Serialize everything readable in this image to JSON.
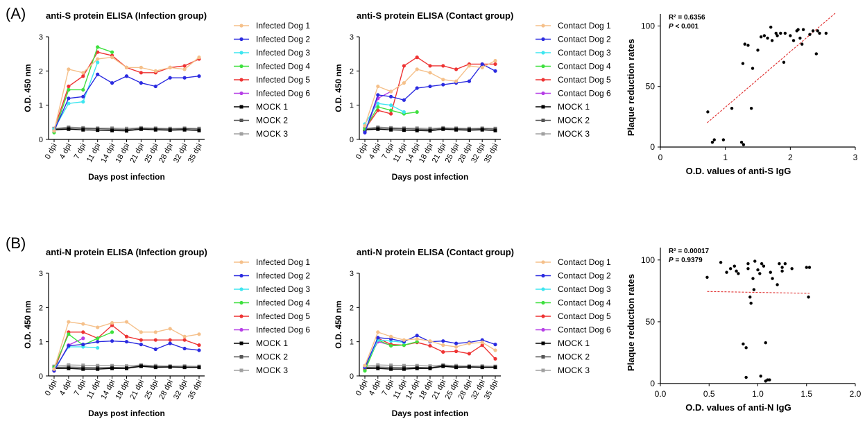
{
  "panel_labels": {
    "a": "(A)",
    "b": "(B)"
  },
  "colors": {
    "Infected Dog 1": "#f5c08a",
    "Infected Dog 2": "#2b2be0",
    "Infected Dog 3": "#3ee6f0",
    "Infected Dog 4": "#3ee03e",
    "Infected Dog 5": "#ee3333",
    "Infected Dog 6": "#b63ee6",
    "Contact Dog 1": "#f5c08a",
    "Contact Dog 2": "#2b2be0",
    "Contact Dog 3": "#3ee6f0",
    "Contact Dog 4": "#3ee03e",
    "Contact Dog 5": "#ee3333",
    "Contact Dog 6": "#b63ee6",
    "MOCK 1": "#000000",
    "MOCK 2": "#555555",
    "MOCK 3": "#a0a0a0",
    "fit_line": "#e03030",
    "scatter_points": "#000000"
  },
  "chart_data": [
    {
      "type": "line",
      "title": "anti-S protein ELISA (Infection group)",
      "xlabel": "Days post infection",
      "ylabel": "O.D. 450 nm",
      "ylim": [
        0,
        3
      ],
      "yticks": [
        0,
        1,
        2,
        3
      ],
      "categories": [
        "0 dpi",
        "4 dpi",
        "7 dpi",
        "11 dpi",
        "14 dpi",
        "18 dpi",
        "21 dpi",
        "25 dpi",
        "28 dpi",
        "32 dpi",
        "35 dpi"
      ],
      "legend": "right",
      "series": [
        {
          "name": "Infected Dog 1",
          "values": [
            0.25,
            2.05,
            1.95,
            2.35,
            2.4,
            2.1,
            2.1,
            2.0,
            2.1,
            2.05,
            2.4
          ]
        },
        {
          "name": "Infected Dog 2",
          "values": [
            0.25,
            1.2,
            1.25,
            1.9,
            1.65,
            1.85,
            1.65,
            1.55,
            1.8,
            1.8,
            1.85
          ]
        },
        {
          "name": "Infected Dog 3",
          "values": [
            0.3,
            1.05,
            1.1,
            2.25,
            null,
            null,
            null,
            null,
            null,
            null,
            null
          ]
        },
        {
          "name": "Infected Dog 4",
          "values": [
            0.2,
            1.45,
            1.45,
            2.7,
            2.55,
            null,
            null,
            null,
            null,
            null,
            null
          ]
        },
        {
          "name": "Infected Dog 5",
          "values": [
            0.3,
            1.55,
            1.85,
            2.55,
            2.45,
            2.1,
            1.95,
            1.95,
            2.1,
            2.15,
            2.35
          ]
        },
        {
          "name": "Infected Dog 6",
          "values": [
            0.3,
            null,
            null,
            null,
            null,
            null,
            null,
            null,
            null,
            null,
            null
          ]
        },
        {
          "name": "MOCK 1",
          "values": [
            0.28,
            0.3,
            0.28,
            0.27,
            0.26,
            0.25,
            0.3,
            0.28,
            0.27,
            0.28,
            0.26
          ]
        },
        {
          "name": "MOCK 2",
          "values": [
            0.3,
            0.33,
            0.32,
            0.31,
            0.3,
            0.29,
            0.32,
            0.31,
            0.3,
            0.31,
            0.3
          ]
        },
        {
          "name": "MOCK 3",
          "values": [
            0.32,
            0.36,
            0.34,
            0.33,
            0.33,
            0.32,
            0.34,
            0.33,
            0.32,
            0.33,
            0.32
          ]
        }
      ]
    },
    {
      "type": "line",
      "title": "anti-S protein ELISA (Contact group)",
      "xlabel": "Days post infection",
      "ylabel": "O.D. 450 nm",
      "ylim": [
        0,
        3
      ],
      "yticks": [
        0,
        1,
        2,
        3
      ],
      "categories": [
        "0 dpi",
        "4 dpi",
        "7 dpi",
        "11 dpi",
        "14 dpi",
        "18 dpi",
        "21 dpi",
        "25 dpi",
        "28 dpi",
        "32 dpi",
        "35 dpi"
      ],
      "legend": "right",
      "series": [
        {
          "name": "Contact Dog 1",
          "values": [
            0.4,
            1.55,
            1.4,
            1.65,
            2.05,
            1.95,
            1.75,
            1.7,
            2.15,
            2.1,
            2.3
          ]
        },
        {
          "name": "Contact Dog 2",
          "values": [
            0.2,
            1.3,
            1.25,
            1.15,
            1.5,
            1.55,
            1.6,
            1.65,
            1.7,
            2.2,
            2.0
          ]
        },
        {
          "name": "Contact Dog 3",
          "values": [
            0.45,
            1.05,
            1.0,
            0.8,
            null,
            null,
            null,
            null,
            null,
            null,
            null
          ]
        },
        {
          "name": "Contact Dog 4",
          "values": [
            0.3,
            0.95,
            0.85,
            0.75,
            0.8,
            null,
            null,
            null,
            null,
            null,
            null
          ]
        },
        {
          "name": "Contact Dog 5",
          "values": [
            0.3,
            0.85,
            0.75,
            2.15,
            2.4,
            2.15,
            2.15,
            2.05,
            2.2,
            2.2,
            2.2
          ]
        },
        {
          "name": "Contact Dog 6",
          "values": [
            0.2,
            1.2,
            1.4,
            null,
            null,
            null,
            null,
            null,
            null,
            null,
            null
          ]
        },
        {
          "name": "MOCK 1",
          "values": [
            0.28,
            0.3,
            0.28,
            0.27,
            0.26,
            0.25,
            0.3,
            0.28,
            0.27,
            0.28,
            0.26
          ]
        },
        {
          "name": "MOCK 2",
          "values": [
            0.3,
            0.33,
            0.32,
            0.31,
            0.3,
            0.29,
            0.32,
            0.31,
            0.3,
            0.31,
            0.3
          ]
        },
        {
          "name": "MOCK 3",
          "values": [
            0.32,
            0.36,
            0.34,
            0.33,
            0.33,
            0.32,
            0.34,
            0.33,
            0.32,
            0.33,
            0.32
          ]
        }
      ]
    },
    {
      "type": "scatter",
      "title": "",
      "xlabel": "O.D. values of anti-S IgG",
      "ylabel": "Plaque reduction rates",
      "xlim": [
        0,
        3
      ],
      "ylim": [
        0,
        110
      ],
      "xticks": [
        0,
        1,
        2,
        3
      ],
      "yticks": [
        0,
        50,
        100
      ],
      "annotation": {
        "r2": "R² = 0.6356",
        "p_label": "P",
        "p_value": " < 0.001"
      },
      "fit_line": {
        "x": [
          0.72,
          2.7
        ],
        "y": [
          20,
          111
        ]
      },
      "points": [
        [
          0.73,
          29
        ],
        [
          0.8,
          4
        ],
        [
          0.83,
          6
        ],
        [
          0.97,
          6
        ],
        [
          1.1,
          32
        ],
        [
          1.25,
          4
        ],
        [
          1.27,
          69
        ],
        [
          1.28,
          2
        ],
        [
          1.3,
          85
        ],
        [
          1.35,
          84
        ],
        [
          1.4,
          32
        ],
        [
          1.42,
          65
        ],
        [
          1.5,
          80
        ],
        [
          1.55,
          91
        ],
        [
          1.6,
          92
        ],
        [
          1.65,
          90
        ],
        [
          1.7,
          99
        ],
        [
          1.72,
          88
        ],
        [
          1.78,
          94
        ],
        [
          1.8,
          92
        ],
        [
          1.85,
          94
        ],
        [
          1.9,
          70
        ],
        [
          1.92,
          94
        ],
        [
          2.0,
          92
        ],
        [
          2.05,
          88
        ],
        [
          2.1,
          96
        ],
        [
          2.12,
          97
        ],
        [
          2.15,
          90
        ],
        [
          2.18,
          85
        ],
        [
          2.2,
          97
        ],
        [
          2.3,
          93
        ],
        [
          2.35,
          96
        ],
        [
          2.4,
          77
        ],
        [
          2.42,
          96
        ],
        [
          2.45,
          94
        ],
        [
          2.55,
          94
        ]
      ]
    },
    {
      "type": "line",
      "title": "anti-N protein ELISA (Infection group)",
      "xlabel": "Days post infection",
      "ylabel": "O.D. 450 nm",
      "ylim": [
        0,
        3
      ],
      "yticks": [
        0,
        1,
        2,
        3
      ],
      "categories": [
        "0 dpi",
        "4 dpi",
        "7 dpi",
        "11 dpi",
        "14 dpi",
        "18 dpi",
        "21 dpi",
        "25 dpi",
        "28 dpi",
        "32 dpi",
        "35 dpi"
      ],
      "legend": "right",
      "series": [
        {
          "name": "Infected Dog 1",
          "values": [
            0.2,
            1.58,
            1.52,
            1.42,
            1.55,
            1.58,
            1.28,
            1.28,
            1.38,
            1.15,
            1.22
          ]
        },
        {
          "name": "Infected Dog 2",
          "values": [
            0.15,
            0.88,
            0.92,
            1.0,
            1.02,
            1.0,
            0.92,
            0.78,
            0.95,
            0.8,
            0.75
          ]
        },
        {
          "name": "Infected Dog 3",
          "values": [
            0.2,
            0.85,
            0.85,
            0.82,
            null,
            null,
            null,
            null,
            null,
            null,
            null
          ]
        },
        {
          "name": "Infected Dog 4",
          "values": [
            0.25,
            1.22,
            0.9,
            1.1,
            1.28,
            null,
            null,
            null,
            null,
            null,
            null
          ]
        },
        {
          "name": "Infected Dog 5",
          "values": [
            0.15,
            1.28,
            1.28,
            1.1,
            1.48,
            1.15,
            1.05,
            1.05,
            1.05,
            1.05,
            0.9
          ]
        },
        {
          "name": "Infected Dog 6",
          "values": [
            0.15,
            0.9,
            1.1,
            null,
            null,
            null,
            null,
            null,
            null,
            null,
            null
          ]
        },
        {
          "name": "MOCK 1",
          "values": [
            0.22,
            0.22,
            0.2,
            0.2,
            0.22,
            0.22,
            0.28,
            0.25,
            0.26,
            0.25,
            0.25
          ]
        },
        {
          "name": "MOCK 2",
          "values": [
            0.25,
            0.26,
            0.25,
            0.24,
            0.25,
            0.24,
            0.3,
            0.27,
            0.27,
            0.26,
            0.26
          ]
        },
        {
          "name": "MOCK 3",
          "values": [
            0.28,
            0.32,
            0.31,
            0.3,
            0.3,
            0.29,
            0.32,
            0.3,
            0.29,
            0.29,
            0.28
          ]
        }
      ]
    },
    {
      "type": "line",
      "title": "anti-N protein ELISA (Contact group)",
      "xlabel": "Days post infection",
      "ylabel": "O.D. 450 nm",
      "ylim": [
        0,
        3
      ],
      "yticks": [
        0,
        1,
        2,
        3
      ],
      "categories": [
        "0 dpi",
        "4 dpi",
        "7 dpi",
        "11 dpi",
        "14 dpi",
        "18 dpi",
        "21 dpi",
        "25 dpi",
        "28 dpi",
        "32 dpi",
        "35 dpi"
      ],
      "legend": "right",
      "series": [
        {
          "name": "Contact Dog 1",
          "values": [
            0.3,
            1.28,
            1.15,
            1.05,
            1.08,
            1.02,
            0.9,
            0.85,
            0.95,
            0.98,
            0.75
          ]
        },
        {
          "name": "Contact Dog 2",
          "values": [
            0.25,
            1.12,
            1.08,
            1.0,
            1.18,
            1.0,
            1.02,
            0.95,
            0.98,
            1.05,
            0.92
          ]
        },
        {
          "name": "Contact Dog 3",
          "values": [
            0.25,
            1.05,
            1.02,
            0.98,
            null,
            null,
            null,
            null,
            null,
            null,
            null
          ]
        },
        {
          "name": "Contact Dog 4",
          "values": [
            0.15,
            1.05,
            0.88,
            0.9,
            1.0,
            null,
            null,
            null,
            null,
            null,
            null
          ]
        },
        {
          "name": "Contact Dog 5",
          "values": [
            0.2,
            1.1,
            0.92,
            0.9,
            0.98,
            0.88,
            0.7,
            0.72,
            0.65,
            0.9,
            0.5
          ]
        },
        {
          "name": "Contact Dog 6",
          "values": [
            0.3,
            1.0,
            0.9,
            null,
            null,
            null,
            null,
            null,
            null,
            null,
            null
          ]
        },
        {
          "name": "MOCK 1",
          "values": [
            0.22,
            0.22,
            0.2,
            0.2,
            0.22,
            0.22,
            0.28,
            0.25,
            0.26,
            0.25,
            0.25
          ]
        },
        {
          "name": "MOCK 2",
          "values": [
            0.25,
            0.26,
            0.25,
            0.24,
            0.25,
            0.24,
            0.3,
            0.27,
            0.27,
            0.26,
            0.26
          ]
        },
        {
          "name": "MOCK 3",
          "values": [
            0.28,
            0.32,
            0.31,
            0.3,
            0.3,
            0.29,
            0.32,
            0.3,
            0.29,
            0.29,
            0.28
          ]
        }
      ]
    },
    {
      "type": "scatter",
      "title": "",
      "xlabel": "O.D. values of anti-N IgG",
      "ylabel": "Plaque reduction rates",
      "xlim": [
        0,
        2
      ],
      "ylim": [
        0,
        110
      ],
      "xticks": [
        "0.0",
        "0.5",
        "1.0",
        "1.5",
        "2.0"
      ],
      "yticks": [
        0,
        50,
        100
      ],
      "annotation": {
        "r2": "R² = 0.00017",
        "p_label": "P",
        "p_value": " = 0.9379"
      },
      "fit_line": {
        "x": [
          0.48,
          1.53
        ],
        "y": [
          74.5,
          73
        ]
      },
      "points": [
        [
          0.48,
          86
        ],
        [
          0.62,
          98
        ],
        [
          0.68,
          90
        ],
        [
          0.72,
          93
        ],
        [
          0.76,
          95
        ],
        [
          0.78,
          91
        ],
        [
          0.8,
          89
        ],
        [
          0.85,
          32
        ],
        [
          0.88,
          29
        ],
        [
          0.88,
          5
        ],
        [
          0.9,
          93
        ],
        [
          0.9,
          97
        ],
        [
          0.92,
          70
        ],
        [
          0.93,
          65
        ],
        [
          0.95,
          85
        ],
        [
          0.96,
          76
        ],
        [
          0.97,
          99
        ],
        [
          1.0,
          92
        ],
        [
          1.02,
          89
        ],
        [
          1.03,
          6
        ],
        [
          1.04,
          97
        ],
        [
          1.06,
          95
        ],
        [
          1.08,
          33
        ],
        [
          1.08,
          2
        ],
        [
          1.1,
          3
        ],
        [
          1.12,
          3
        ],
        [
          1.13,
          90
        ],
        [
          1.15,
          85
        ],
        [
          1.2,
          80
        ],
        [
          1.22,
          97
        ],
        [
          1.25,
          94
        ],
        [
          1.25,
          91
        ],
        [
          1.28,
          97
        ],
        [
          1.35,
          93
        ],
        [
          1.5,
          94
        ],
        [
          1.52,
          70
        ],
        [
          1.53,
          94
        ]
      ]
    }
  ]
}
